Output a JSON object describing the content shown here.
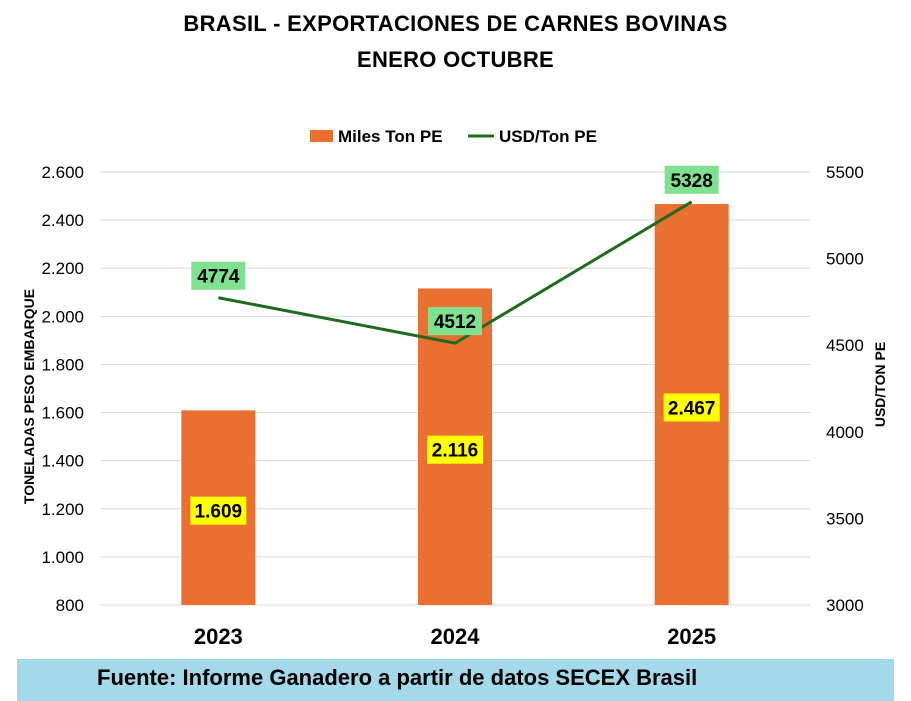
{
  "chart_data": {
    "type": "bar+line",
    "title": "BRASIL - EXPORTACIONES DE CARNES BOVINAS",
    "subtitle": "ENERO OCTUBRE",
    "categories": [
      "2023",
      "2024",
      "2025"
    ],
    "series": [
      {
        "name": "Miles Ton PE",
        "type": "bar",
        "axis": "left",
        "color": "#ea7032",
        "values": [
          1609,
          2116,
          2467
        ],
        "labels": [
          "1.609",
          "2.116",
          "2.467"
        ],
        "label_bg": "#ffff00"
      },
      {
        "name": "USD/Ton PE",
        "type": "line",
        "axis": "right",
        "color": "#1f6b1f",
        "values": [
          4774,
          4512,
          5328
        ],
        "labels": [
          "4774",
          "4512",
          "5328"
        ],
        "label_bg": "#7fe08f"
      }
    ],
    "y_left": {
      "label": "TONELADAS PESO EMBARQUE",
      "min": 800,
      "max": 2600,
      "ticks": [
        800,
        1000,
        1200,
        1400,
        1600,
        1800,
        2000,
        2200,
        2400,
        2600
      ],
      "tick_labels": [
        "800",
        "1.000",
        "1.200",
        "1.400",
        "1.600",
        "1.800",
        "2.000",
        "2.200",
        "2.400",
        "2.600"
      ]
    },
    "y_right": {
      "label": "USD/TON PE",
      "min": 3000,
      "max": 5500,
      "ticks": [
        3000,
        3500,
        4000,
        4500,
        5000,
        5500
      ],
      "tick_labels": [
        "3000",
        "3500",
        "4000",
        "4500",
        "5000",
        "5500"
      ]
    },
    "grid": true,
    "legend_position": "top-center"
  },
  "footer": {
    "text": "Fuente: Informe Ganadero a partir de datos SECEX Brasil"
  }
}
